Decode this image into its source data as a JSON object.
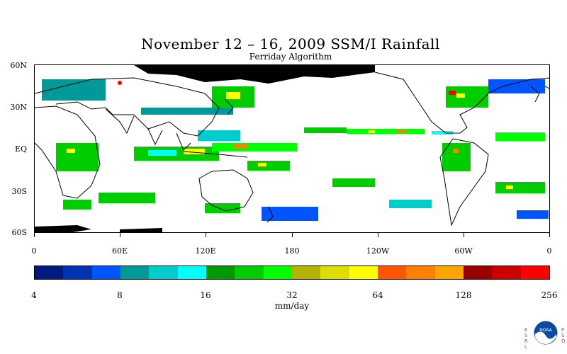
{
  "title": "November 12 – 16, 2009 SSM/I Rainfall",
  "subtitle": "Ferriday Algorithm",
  "lat_labels": [
    "60N",
    "30N",
    "EQ",
    "30S",
    "60S"
  ],
  "lon_labels": [
    "0",
    "60E",
    "120E",
    "180",
    "120W",
    "60W",
    "0"
  ],
  "colorbar": {
    "colors": [
      "#001a80",
      "#0033b3",
      "#0055ff",
      "#009999",
      "#00cccc",
      "#00ffff",
      "#009900",
      "#00cc00",
      "#00ff00",
      "#b3b300",
      "#dddd00",
      "#ffff00",
      "#ff5500",
      "#ff8000",
      "#ffa500",
      "#990000",
      "#cc0000",
      "#ff0000"
    ],
    "tick_labels": [
      "4",
      "8",
      "16",
      "32",
      "64",
      "128",
      "256"
    ],
    "units": "mm/day"
  },
  "logo": {
    "left_letters": "ESRL",
    "right_letters": "PSD",
    "emblem_text": "NOAA"
  }
}
